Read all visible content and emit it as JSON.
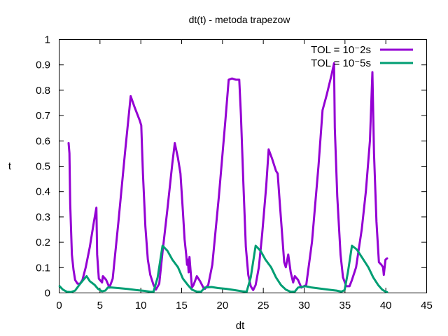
{
  "chart_data": {
    "type": "line",
    "title": "dt(t)  -  metoda  trapezow",
    "xlabel": "dt",
    "ylabel": "t",
    "xlim": [
      0,
      45
    ],
    "ylim": [
      0,
      1
    ],
    "xticks": [
      0,
      5,
      10,
      15,
      20,
      25,
      30,
      35,
      40,
      45
    ],
    "xtick_labels": [
      "0",
      "5",
      "10",
      "15",
      "20",
      "25",
      "30",
      "35",
      "40",
      "45"
    ],
    "yticks": [
      0,
      0.1,
      0.2,
      0.3,
      0.4,
      0.5,
      0.6,
      0.7,
      0.8,
      0.9,
      1
    ],
    "ytick_labels": [
      "0",
      "0.1",
      "0.2",
      "0.3",
      "0.4",
      "0.5",
      "0.6",
      "0.7",
      "0.8",
      "0.9",
      "1"
    ],
    "grid": false,
    "legend_position": "top-right",
    "series": [
      {
        "name": "TOL = 10⁻2s",
        "color": "#9400d3",
        "points": [
          [
            1.2,
            0.59
          ],
          [
            1.3,
            0.55
          ],
          [
            1.4,
            0.35
          ],
          [
            1.6,
            0.15
          ],
          [
            1.8,
            0.09
          ],
          [
            2.0,
            0.05
          ],
          [
            2.3,
            0.035
          ],
          [
            2.6,
            0.035
          ],
          [
            2.9,
            0.05
          ],
          [
            3.3,
            0.1
          ],
          [
            3.8,
            0.18
          ],
          [
            4.3,
            0.28
          ],
          [
            4.6,
            0.335
          ],
          [
            4.7,
            0.15
          ],
          [
            4.9,
            0.055
          ],
          [
            5.3,
            0.04
          ],
          [
            5.4,
            0.065
          ],
          [
            5.8,
            0.05
          ],
          [
            6.2,
            0.02
          ],
          [
            6.6,
            0.055
          ],
          [
            7.3,
            0.28
          ],
          [
            8.1,
            0.55
          ],
          [
            8.8,
            0.775
          ],
          [
            9.3,
            0.73
          ],
          [
            9.9,
            0.68
          ],
          [
            10.1,
            0.66
          ],
          [
            10.3,
            0.47
          ],
          [
            10.6,
            0.26
          ],
          [
            10.9,
            0.13
          ],
          [
            11.2,
            0.07
          ],
          [
            11.6,
            0.03
          ],
          [
            11.9,
            0.012
          ],
          [
            12.3,
            0.035
          ],
          [
            12.7,
            0.16
          ],
          [
            13.3,
            0.33
          ],
          [
            13.9,
            0.51
          ],
          [
            14.2,
            0.59
          ],
          [
            14.6,
            0.53
          ],
          [
            14.9,
            0.47
          ],
          [
            15.2,
            0.32
          ],
          [
            15.4,
            0.21
          ],
          [
            15.6,
            0.15
          ],
          [
            15.7,
            0.11
          ],
          [
            15.8,
            0.13
          ],
          [
            15.9,
            0.08
          ],
          [
            16.0,
            0.14
          ],
          [
            16.3,
            0.02
          ],
          [
            16.5,
            0.03
          ],
          [
            16.9,
            0.065
          ],
          [
            17.3,
            0.045
          ],
          [
            17.7,
            0.02
          ],
          [
            17.9,
            0.015
          ],
          [
            18.3,
            0.03
          ],
          [
            18.8,
            0.11
          ],
          [
            19.6,
            0.38
          ],
          [
            20.4,
            0.68
          ],
          [
            20.8,
            0.84
          ],
          [
            21.2,
            0.845
          ],
          [
            21.7,
            0.84
          ],
          [
            22.1,
            0.84
          ],
          [
            22.3,
            0.7
          ],
          [
            22.6,
            0.43
          ],
          [
            22.9,
            0.18
          ],
          [
            23.2,
            0.07
          ],
          [
            23.5,
            0.025
          ],
          [
            23.8,
            0.01
          ],
          [
            24.1,
            0.03
          ],
          [
            24.5,
            0.1
          ],
          [
            24.9,
            0.23
          ],
          [
            25.4,
            0.42
          ],
          [
            25.7,
            0.565
          ],
          [
            26.1,
            0.53
          ],
          [
            26.6,
            0.48
          ],
          [
            26.8,
            0.47
          ],
          [
            27.0,
            0.38
          ],
          [
            27.3,
            0.25
          ],
          [
            27.6,
            0.12
          ],
          [
            27.8,
            0.1
          ],
          [
            28.1,
            0.15
          ],
          [
            28.4,
            0.08
          ],
          [
            28.7,
            0.04
          ],
          [
            28.9,
            0.065
          ],
          [
            29.3,
            0.05
          ],
          [
            29.7,
            0.02
          ],
          [
            30.3,
            0.03
          ],
          [
            31.0,
            0.2
          ],
          [
            31.8,
            0.5
          ],
          [
            32.3,
            0.72
          ],
          [
            32.8,
            0.78
          ],
          [
            33.4,
            0.86
          ],
          [
            33.7,
            0.905
          ],
          [
            33.8,
            0.65
          ],
          [
            34.1,
            0.38
          ],
          [
            34.5,
            0.15
          ],
          [
            34.8,
            0.06
          ],
          [
            35.2,
            0.025
          ],
          [
            35.6,
            0.025
          ],
          [
            35.9,
            0.05
          ],
          [
            36.4,
            0.1
          ],
          [
            37.1,
            0.25
          ],
          [
            37.6,
            0.4
          ],
          [
            38.1,
            0.6
          ],
          [
            38.4,
            0.87
          ],
          [
            38.6,
            0.55
          ],
          [
            38.9,
            0.28
          ],
          [
            39.2,
            0.12
          ],
          [
            39.5,
            0.11
          ],
          [
            39.7,
            0.1
          ],
          [
            39.8,
            0.07
          ],
          [
            40.0,
            0.13
          ],
          [
            40.2,
            0.135
          ]
        ]
      },
      {
        "name": "TOL = 10⁻5s",
        "color": "#009e73",
        "points": [
          [
            0.1,
            0.025
          ],
          [
            0.5,
            0.012
          ],
          [
            1.0,
            0.003
          ],
          [
            1.5,
            0.002
          ],
          [
            2.0,
            0.008
          ],
          [
            2.5,
            0.03
          ],
          [
            3.0,
            0.05
          ],
          [
            3.4,
            0.065
          ],
          [
            3.8,
            0.045
          ],
          [
            4.4,
            0.03
          ],
          [
            4.8,
            0.015
          ],
          [
            5.3,
            0.005
          ],
          [
            5.7,
            0.008
          ],
          [
            6.0,
            0.02
          ],
          [
            6.5,
            0.02
          ],
          [
            7.5,
            0.017
          ],
          [
            8.5,
            0.014
          ],
          [
            9.5,
            0.01
          ],
          [
            10.5,
            0.007
          ],
          [
            11.2,
            0.003
          ],
          [
            11.6,
            0.003
          ],
          [
            12.1,
            0.06
          ],
          [
            12.7,
            0.185
          ],
          [
            13.3,
            0.165
          ],
          [
            13.9,
            0.13
          ],
          [
            14.6,
            0.1
          ],
          [
            15.2,
            0.055
          ],
          [
            15.8,
            0.03
          ],
          [
            16.3,
            0.012
          ],
          [
            16.9,
            0.004
          ],
          [
            17.4,
            0.003
          ],
          [
            17.9,
            0.02
          ],
          [
            18.7,
            0.022
          ],
          [
            19.5,
            0.018
          ],
          [
            20.5,
            0.015
          ],
          [
            21.5,
            0.01
          ],
          [
            22.5,
            0.005
          ],
          [
            23.0,
            0.003
          ],
          [
            23.5,
            0.06
          ],
          [
            24.1,
            0.185
          ],
          [
            24.7,
            0.165
          ],
          [
            25.3,
            0.13
          ],
          [
            26.0,
            0.1
          ],
          [
            26.6,
            0.06
          ],
          [
            27.2,
            0.03
          ],
          [
            27.8,
            0.012
          ],
          [
            28.4,
            0.003
          ],
          [
            28.9,
            0.004
          ],
          [
            29.3,
            0.02
          ],
          [
            30.2,
            0.025
          ],
          [
            31.0,
            0.02
          ],
          [
            32.0,
            0.016
          ],
          [
            33.0,
            0.012
          ],
          [
            34.0,
            0.008
          ],
          [
            34.6,
            0.004
          ],
          [
            35.0,
            0.01
          ],
          [
            35.4,
            0.08
          ],
          [
            35.9,
            0.185
          ],
          [
            36.5,
            0.17
          ],
          [
            37.2,
            0.135
          ],
          [
            37.9,
            0.1
          ],
          [
            38.5,
            0.06
          ],
          [
            39.1,
            0.03
          ],
          [
            39.6,
            0.012
          ],
          [
            40.0,
            0.004
          ],
          [
            40.2,
            0.002
          ]
        ]
      }
    ]
  }
}
